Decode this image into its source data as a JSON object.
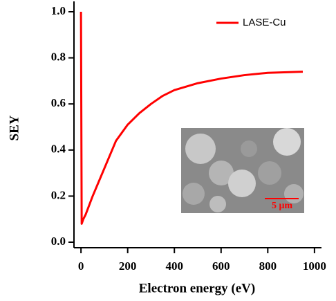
{
  "chart_data": {
    "type": "line",
    "x_label": "Electron energy (eV)",
    "y_label": "SEY",
    "x": [
      0,
      3,
      10,
      20,
      50,
      100,
      150,
      200,
      250,
      300,
      350,
      400,
      500,
      600,
      700,
      800,
      950
    ],
    "series": [
      {
        "name": "LASE-Cu",
        "color": "#ff0000",
        "values": [
          1.0,
          0.08,
          0.1,
          0.12,
          0.2,
          0.32,
          0.44,
          0.51,
          0.56,
          0.6,
          0.635,
          0.66,
          0.69,
          0.71,
          0.725,
          0.735,
          0.74
        ]
      }
    ],
    "xlim": [
      -30,
      1030
    ],
    "ylim": [
      -0.024,
      1.045
    ],
    "xticks": [
      0,
      200,
      400,
      600,
      800,
      1000
    ],
    "yticks": [
      {
        "value": 0,
        "label": "0.0"
      },
      0.2,
      0.4,
      0.6,
      0.8,
      {
        "value": 1,
        "label": "1.0"
      }
    ],
    "legend": "upper right",
    "inset_label": "5 μm"
  }
}
